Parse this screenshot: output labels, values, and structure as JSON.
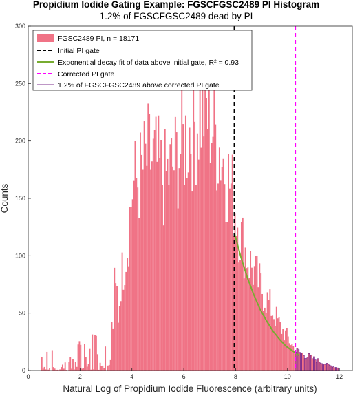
{
  "chart_data": {
    "type": "bar",
    "title": "Propidium Iodide Gating Example: FGSCFGSC2489 PI Histogram",
    "subtitle": "1.2% of FGSCFGSC2489 dead by PI",
    "xlabel": "Natural Log of Propidium Iodide Fluorescence (arbitrary units)",
    "ylabel": "Counts",
    "xlim": [
      0,
      12.5
    ],
    "ylim": [
      0,
      300
    ],
    "xticks": [
      0,
      2,
      4,
      6,
      8,
      10,
      12
    ],
    "yticks": [
      0,
      50,
      100,
      150,
      200,
      250,
      300
    ],
    "grid": false,
    "legend_placement": "top-left",
    "bin_width": 0.05,
    "initial_gate": 7.95,
    "corrected_gate": 10.3,
    "fit_curve": {
      "x": [
        7.95,
        8.2,
        8.45,
        8.7,
        8.95,
        9.2,
        9.45,
        9.7,
        9.95,
        10.2,
        10.45
      ],
      "y": [
        120,
        99,
        81,
        66,
        53,
        43,
        34,
        27,
        21,
        17,
        13
      ]
    },
    "bins_x_start": 0.5,
    "histogram_counts": [
      0,
      0,
      0,
      0,
      0,
      0,
      0,
      0,
      0,
      0,
      0,
      0,
      0,
      0,
      0,
      0,
      0,
      0,
      0,
      0,
      0,
      0,
      0,
      0,
      0,
      0,
      0,
      0,
      0,
      0,
      0,
      0,
      0,
      0,
      0,
      0,
      0,
      0,
      0,
      0,
      0,
      0,
      0,
      0,
      0,
      0,
      0,
      0,
      0,
      0,
      0,
      0,
      0,
      0,
      0,
      0,
      0,
      0,
      0,
      0,
      0,
      0,
      0,
      0,
      0,
      0,
      0,
      0,
      0,
      0,
      0,
      0,
      0,
      0,
      0,
      0,
      0,
      0,
      0,
      0,
      0,
      0,
      0,
      0,
      0,
      0,
      0,
      0,
      0,
      0,
      0,
      0,
      0,
      0,
      0,
      0,
      0,
      0,
      0,
      0,
      0,
      0,
      0,
      0,
      0,
      0,
      0,
      0,
      0,
      0,
      0,
      0,
      0,
      0,
      0,
      0,
      0,
      0,
      0,
      0,
      0,
      0,
      0,
      0,
      0,
      0,
      0,
      0,
      0,
      0,
      0,
      0,
      0,
      0,
      0,
      0,
      0,
      0,
      0,
      0,
      0,
      0,
      0,
      0,
      0,
      0,
      0,
      0,
      0,
      0,
      0,
      0,
      0,
      0,
      0,
      0,
      0,
      0,
      0,
      0,
      0,
      0,
      0,
      0,
      0,
      0,
      0,
      0,
      0,
      0,
      0,
      0,
      0,
      0,
      0,
      0,
      0,
      0,
      0,
      0,
      0,
      0,
      0,
      0,
      0,
      0,
      0,
      0,
      0,
      0,
      0,
      0,
      0,
      0,
      0,
      0,
      0,
      0,
      0,
      0,
      0,
      0,
      0,
      0,
      0,
      0,
      0,
      0,
      0,
      0,
      0,
      0,
      0,
      0,
      0,
      0,
      0,
      0,
      0,
      0,
      0,
      0,
      0,
      0,
      0,
      0,
      0,
      0,
      0,
      0,
      0,
      0,
      0,
      0,
      0,
      0,
      0,
      0,
      0,
      0,
      0,
      0,
      0,
      0,
      0,
      0,
      0,
      0,
      0,
      0,
      0,
      0,
      0,
      0,
      0,
      0,
      0,
      0,
      0,
      0,
      0,
      0,
      0,
      0,
      0,
      0,
      0,
      0,
      0,
      0,
      0,
      0,
      0,
      0,
      0,
      0,
      0,
      0,
      0,
      0,
      0,
      0,
      0,
      0,
      0,
      0,
      0,
      0,
      0,
      0,
      0,
      0,
      0,
      0,
      0,
      0,
      0,
      0,
      0,
      0,
      0,
      0,
      0,
      0,
      0,
      0,
      0,
      0,
      0,
      0,
      0,
      0,
      0,
      0,
      0,
      0,
      0,
      0,
      0,
      0,
      0,
      0,
      0,
      0,
      0,
      0,
      0,
      0,
      0,
      0,
      0,
      0,
      0,
      0,
      0,
      0,
      0,
      0,
      0,
      0,
      0,
      0,
      0,
      0,
      0,
      0,
      0,
      0,
      0,
      0,
      0,
      0,
      0,
      0,
      0,
      0,
      0,
      0,
      0,
      0,
      0,
      0,
      0,
      0,
      0,
      0,
      0,
      0,
      0,
      0,
      0,
      0,
      0,
      0,
      0,
      0,
      0,
      0,
      0,
      0,
      0,
      0,
      0,
      0,
      0,
      0,
      0,
      0,
      0,
      0,
      0,
      0,
      0,
      0,
      0,
      0,
      0,
      0,
      0,
      0,
      0,
      0,
      0,
      0,
      0,
      0,
      0,
      0,
      0,
      0,
      0,
      0,
      0,
      0,
      0,
      0,
      0,
      0,
      0,
      0,
      0,
      0,
      0,
      0,
      0,
      0,
      0,
      0,
      0,
      0,
      0,
      0,
      0,
      0,
      0,
      0,
      0,
      0,
      0,
      0,
      0,
      0,
      0,
      0,
      0,
      0,
      0,
      0,
      0,
      0,
      0,
      0,
      0,
      0,
      0,
      0,
      0,
      0,
      0,
      0,
      0,
      0,
      0,
      0,
      0,
      0,
      0,
      0,
      0,
      0,
      0,
      0,
      0,
      0,
      0,
      0,
      0,
      0,
      0,
      0
    ],
    "histogram_profile": {
      "x": [
        0.5,
        1.0,
        1.5,
        2.0,
        2.5,
        3.0,
        3.4,
        3.8,
        4.0,
        4.3,
        4.6,
        4.9,
        5.2,
        5.5,
        5.8,
        6.1,
        6.4,
        6.7,
        7.0,
        7.3,
        7.6,
        7.9,
        8.2,
        8.5,
        8.8,
        9.1,
        9.4,
        9.7,
        10.0,
        10.3,
        10.6,
        10.9,
        11.2,
        11.5,
        11.8,
        12.0
      ],
      "y": [
        12,
        10,
        8,
        16,
        22,
        32,
        60,
        110,
        160,
        170,
        185,
        180,
        165,
        175,
        190,
        205,
        215,
        230,
        220,
        200,
        175,
        150,
        115,
        95,
        80,
        65,
        52,
        38,
        28,
        17,
        14,
        11,
        8,
        5,
        3,
        2
      ]
    },
    "series": [
      {
        "name": "FGSC2489 PI, n = 18171",
        "color": "#f07386"
      },
      {
        "name": "Initial PI gate",
        "color": "#000000"
      },
      {
        "name": "Exponential decay fit of data above initial gate, R² = 0.93",
        "color": "#77ac30"
      },
      {
        "name": "Corrected PI gate",
        "color": "#ff00ff"
      },
      {
        "name": "1.2% of FGSCFGSC2489 above corrected PI gate",
        "color": "#7e2f8e"
      }
    ]
  }
}
